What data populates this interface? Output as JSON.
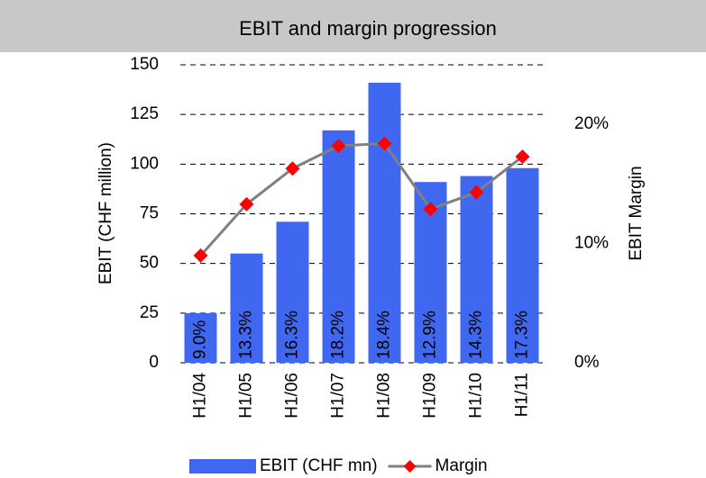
{
  "chart_data": {
    "type": "bar",
    "title": "EBIT and margin progression",
    "y_label": "EBIT (CHF million)",
    "y2_label": "EBIT Margin",
    "categories": [
      "H1/04",
      "H1/05",
      "H1/06",
      "H1/07",
      "H1/08",
      "H1/09",
      "H1/10",
      "H1/11"
    ],
    "series": [
      {
        "name": "EBIT (CHF mn)",
        "type": "bar",
        "color": "#3f67ef",
        "values": [
          25,
          55,
          71,
          117,
          141,
          91,
          94,
          98
        ]
      },
      {
        "name": "Margin",
        "type": "line",
        "axis": "y2",
        "color": "#ff0000",
        "line_color": "#808080",
        "values": [
          9.0,
          13.3,
          16.3,
          18.2,
          18.4,
          12.9,
          14.3,
          17.3
        ],
        "value_labels": [
          "9.0%",
          "13.3%",
          "16.3%",
          "18.2%",
          "18.4%",
          "12.9%",
          "14.3%",
          "17.3%"
        ]
      }
    ],
    "ylim": [
      0,
      150
    ],
    "yticks": [
      0,
      25,
      50,
      75,
      100,
      125,
      150
    ],
    "y2lim": [
      0,
      25
    ],
    "y2ticks": [
      {
        "value": 0,
        "label": "0%"
      },
      {
        "value": 10,
        "label": "10%"
      },
      {
        "value": 20,
        "label": "20%"
      }
    ],
    "grid": true,
    "legend": "bottom"
  }
}
